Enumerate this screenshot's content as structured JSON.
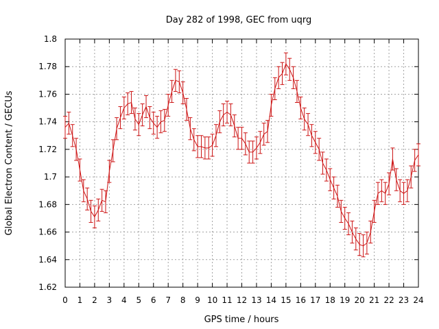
{
  "chart_data": {
    "type": "line",
    "title": "Day 282 of 1998, GEC from uqrg",
    "xlabel": "GPS time / hours",
    "ylabel": "Global Electron Content / GECUs",
    "xlim": [
      0,
      24
    ],
    "ylim": [
      1.62,
      1.8
    ],
    "x_ticks": [
      "0",
      "1",
      "2",
      "3",
      "4",
      "5",
      "6",
      "7",
      "8",
      "9",
      "10",
      "11",
      "12",
      "13",
      "14",
      "15",
      "16",
      "17",
      "18",
      "19",
      "20",
      "21",
      "22",
      "23",
      "24"
    ],
    "y_ticks": [
      "1.62",
      "1.64",
      "1.66",
      "1.68",
      "1.7",
      "1.72",
      "1.74",
      "1.76",
      "1.78",
      "1.8"
    ],
    "grid": true,
    "error_half_width": 0.008,
    "series": [
      {
        "name": "GEC",
        "color": "#cc1111",
        "x": [
          0,
          0.25,
          0.5,
          0.75,
          1,
          1.25,
          1.5,
          1.75,
          2,
          2.25,
          2.5,
          2.75,
          3,
          3.25,
          3.5,
          3.75,
          4,
          4.25,
          4.5,
          4.75,
          5,
          5.25,
          5.5,
          5.75,
          6,
          6.25,
          6.5,
          6.75,
          7,
          7.25,
          7.5,
          7.75,
          8,
          8.25,
          8.5,
          8.75,
          9,
          9.25,
          9.5,
          9.75,
          10,
          10.25,
          10.5,
          10.75,
          11,
          11.25,
          11.5,
          11.75,
          12,
          12.25,
          12.5,
          12.75,
          13,
          13.25,
          13.5,
          13.75,
          14,
          14.25,
          14.5,
          14.75,
          15,
          15.25,
          15.5,
          15.75,
          16,
          16.25,
          16.5,
          16.75,
          17,
          17.25,
          17.5,
          17.75,
          18,
          18.25,
          18.5,
          18.75,
          19,
          19.25,
          19.5,
          19.75,
          20,
          20.25,
          20.5,
          20.75,
          21,
          21.25,
          21.5,
          21.75,
          22,
          22.25,
          22.5,
          22.75,
          23,
          23.25,
          23.5,
          23.75,
          24
        ],
        "values": [
          1.736,
          1.739,
          1.73,
          1.72,
          1.705,
          1.69,
          1.684,
          1.675,
          1.671,
          1.676,
          1.683,
          1.682,
          1.704,
          1.719,
          1.735,
          1.743,
          1.75,
          1.753,
          1.754,
          1.742,
          1.738,
          1.745,
          1.751,
          1.743,
          1.739,
          1.736,
          1.74,
          1.741,
          1.752,
          1.762,
          1.77,
          1.769,
          1.761,
          1.749,
          1.735,
          1.727,
          1.722,
          1.722,
          1.721,
          1.721,
          1.723,
          1.73,
          1.74,
          1.745,
          1.747,
          1.745,
          1.737,
          1.728,
          1.728,
          1.724,
          1.718,
          1.718,
          1.721,
          1.725,
          1.731,
          1.733,
          1.752,
          1.764,
          1.772,
          1.775,
          1.782,
          1.778,
          1.772,
          1.762,
          1.75,
          1.742,
          1.738,
          1.73,
          1.725,
          1.72,
          1.71,
          1.705,
          1.698,
          1.692,
          1.686,
          1.675,
          1.67,
          1.666,
          1.66,
          1.655,
          1.651,
          1.65,
          1.652,
          1.66,
          1.675,
          1.688,
          1.69,
          1.688,
          1.695,
          1.713,
          1.698,
          1.69,
          1.688,
          1.69,
          1.7,
          1.712,
          1.716
        ]
      }
    ]
  }
}
